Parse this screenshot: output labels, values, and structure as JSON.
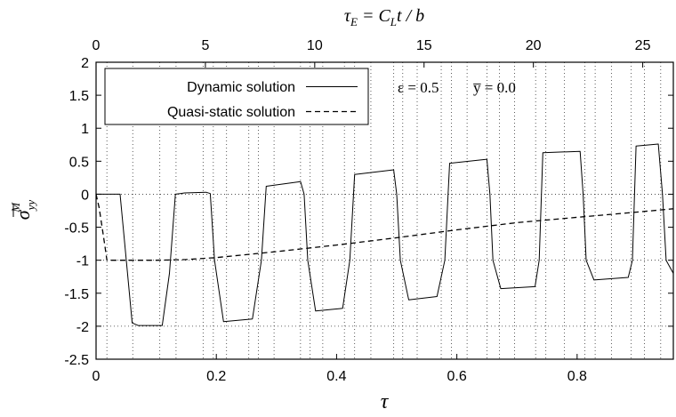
{
  "chart_data": {
    "type": "line",
    "top_axis_label": "τ_E = C_L t / b",
    "xlabel": "τ",
    "ylabel": "σ̄^M_yy",
    "x_range": [
      0,
      0.96
    ],
    "y_range": [
      -2.5,
      2
    ],
    "top_axis_range": [
      0,
      26.4
    ],
    "x_ticks": [
      {
        "value": 0,
        "label": "0"
      },
      {
        "value": 0.2,
        "label": "0.2"
      },
      {
        "value": 0.4,
        "label": "0.4"
      },
      {
        "value": 0.6,
        "label": "0.6"
      },
      {
        "value": 0.8,
        "label": "0.8"
      }
    ],
    "top_ticks": [
      {
        "value": 0,
        "label": "0"
      },
      {
        "value": 5,
        "label": "5"
      },
      {
        "value": 10,
        "label": "10"
      },
      {
        "value": 15,
        "label": "15"
      },
      {
        "value": 20,
        "label": "20"
      },
      {
        "value": 25,
        "label": "25"
      }
    ],
    "y_ticks": [
      {
        "value": 2,
        "label": "2"
      },
      {
        "value": 1.5,
        "label": "1.5"
      },
      {
        "value": 1,
        "label": "1"
      },
      {
        "value": 0.5,
        "label": "0.5"
      },
      {
        "value": 0,
        "label": "0"
      },
      {
        "value": -0.5,
        "label": "-0.5"
      },
      {
        "value": -1,
        "label": "-1"
      },
      {
        "value": -1.5,
        "label": "-1.5"
      },
      {
        "value": -2,
        "label": "-2"
      },
      {
        "value": -2.5,
        "label": "-2.5"
      }
    ],
    "vertical_dotted_lines_tau": [
      0.018,
      0.061,
      0.106,
      0.133,
      0.178,
      0.195,
      0.217,
      0.254,
      0.27,
      0.296,
      0.34,
      0.356,
      0.377,
      0.413,
      0.43,
      0.457,
      0.495,
      0.51,
      0.534,
      0.574,
      0.591,
      0.617,
      0.65,
      0.671,
      0.696,
      0.731,
      0.748,
      0.779,
      0.813,
      0.83,
      0.857,
      0.89,
      0.912,
      0.939
    ],
    "horizontal_dotted_lines_y": [
      0,
      -1,
      -2
    ],
    "series": [
      {
        "name": "Dynamic solution",
        "style": "solid",
        "x": [
          0,
          0.017,
          0.028,
          0.04,
          0.06,
          0.07,
          0.11,
          0.122,
          0.132,
          0.14,
          0.147,
          0.183,
          0.19,
          0.197,
          0.212,
          0.26,
          0.275,
          0.283,
          0.34,
          0.346,
          0.352,
          0.365,
          0.41,
          0.422,
          0.43,
          0.495,
          0.5,
          0.506,
          0.52,
          0.567,
          0.58,
          0.588,
          0.65,
          0.655,
          0.66,
          0.673,
          0.73,
          0.737,
          0.743,
          0.805,
          0.81,
          0.815,
          0.828,
          0.885,
          0.892,
          0.898,
          0.935,
          0.942,
          0.948,
          0.96
        ],
        "y": [
          0,
          0,
          0,
          0,
          -1.95,
          -1.99,
          -1.99,
          -1.2,
          0,
          0.01,
          0.02,
          0.03,
          0.01,
          -1,
          -1.93,
          -1.89,
          -1,
          0.12,
          0.19,
          0,
          -1,
          -1.77,
          -1.73,
          -1,
          0.3,
          0.37,
          0,
          -1,
          -1.6,
          -1.55,
          -1,
          0.47,
          0.53,
          0,
          -1,
          -1.43,
          -1.4,
          -1,
          0.63,
          0.65,
          0,
          -1,
          -1.3,
          -1.26,
          -1,
          0.73,
          0.76,
          0,
          -1,
          -1.2
        ]
      },
      {
        "name": "Quasi-static solution",
        "style": "dashed",
        "x": [
          0,
          0.005,
          0.01,
          0.015,
          0.018,
          0.025,
          0.05,
          0.1,
          0.15,
          0.2,
          0.3,
          0.4,
          0.5,
          0.6,
          0.7,
          0.8,
          0.9,
          0.96
        ],
        "y": [
          0,
          -0.2,
          -0.5,
          -0.8,
          -1,
          -1,
          -1,
          -1,
          -0.99,
          -0.96,
          -0.87,
          -0.77,
          -0.66,
          -0.54,
          -0.43,
          -0.35,
          -0.27,
          -0.22
        ]
      }
    ],
    "annotation": {
      "eps_label": "ε = 0.5",
      "y_label": "y̅ = 0.0"
    },
    "legend_position": "top-left",
    "grid": "partial-dotted"
  }
}
